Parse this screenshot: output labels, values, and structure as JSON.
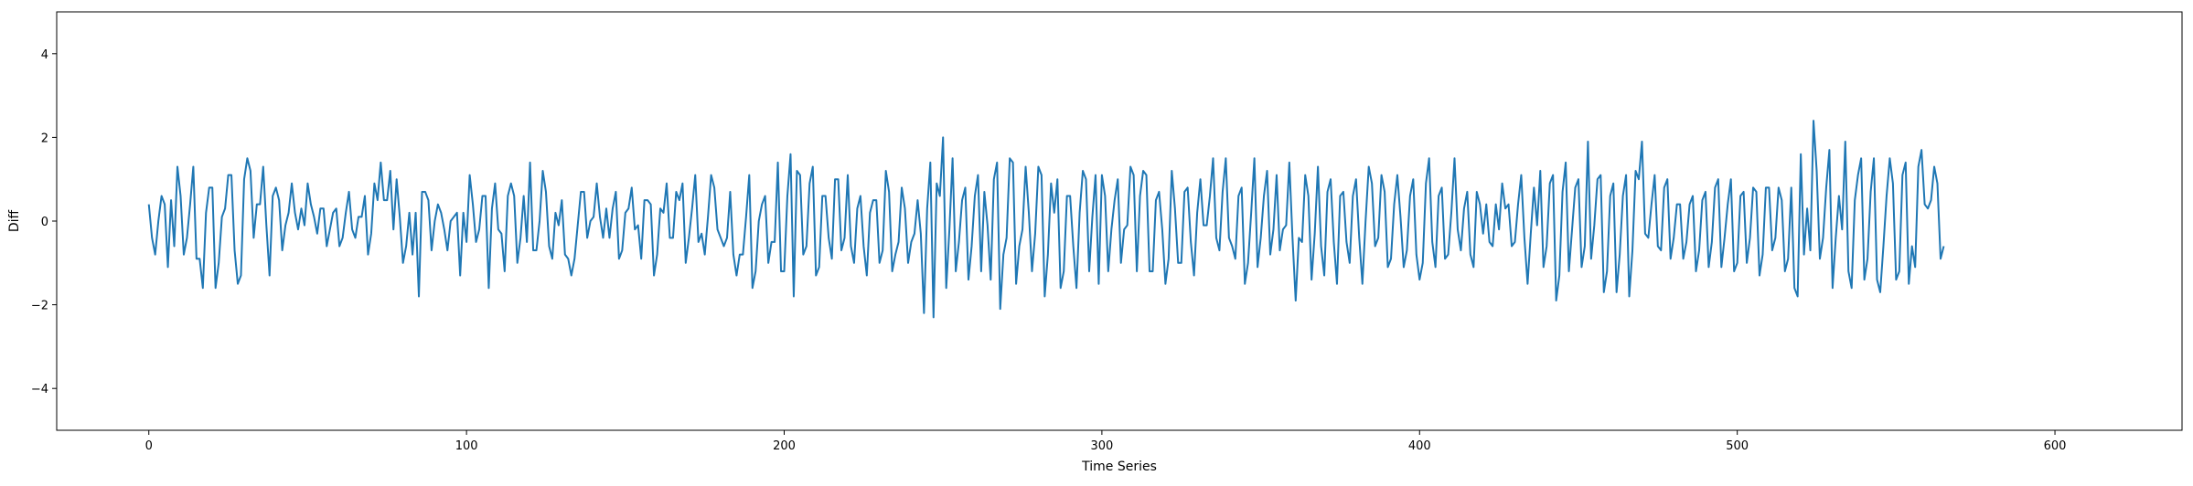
{
  "chart_data": {
    "type": "line",
    "title": "",
    "xlabel": "Time Series",
    "ylabel": "Diff",
    "xlim": [
      -29,
      640
    ],
    "ylim": [
      -5,
      5
    ],
    "xticks": [
      0,
      100,
      200,
      300,
      400,
      500,
      600
    ],
    "yticks": [
      -4,
      -2,
      0,
      2,
      4
    ],
    "xtick_labels": [
      "0",
      "100",
      "200",
      "300",
      "400",
      "500",
      "600"
    ],
    "ytick_labels": [
      "−4",
      "−2",
      "0",
      "2",
      "4"
    ],
    "grid": false,
    "legend": "none",
    "series": [
      {
        "color": "#1f77b4",
        "x_start": 0,
        "x_step": 1,
        "values": [
          0.4,
          -0.4,
          -0.8,
          0.0,
          0.6,
          0.4,
          -1.1,
          0.5,
          -0.6,
          1.3,
          0.6,
          -0.8,
          -0.4,
          0.4,
          1.3,
          -0.9,
          -0.9,
          -1.6,
          0.2,
          0.8,
          0.8,
          -1.6,
          -1.0,
          0.1,
          0.3,
          1.1,
          1.1,
          -0.7,
          -1.5,
          -1.3,
          1.0,
          1.5,
          1.2,
          -0.4,
          0.4,
          0.4,
          1.3,
          -0.1,
          -1.3,
          0.6,
          0.8,
          0.5,
          -0.7,
          -0.1,
          0.2,
          0.9,
          0.2,
          -0.2,
          0.3,
          -0.1,
          0.9,
          0.4,
          0.1,
          -0.3,
          0.3,
          0.3,
          -0.6,
          -0.2,
          0.2,
          0.3,
          -0.6,
          -0.4,
          0.2,
          0.7,
          -0.2,
          -0.4,
          0.1,
          0.1,
          0.6,
          -0.8,
          -0.3,
          0.9,
          0.5,
          1.4,
          0.5,
          0.5,
          1.2,
          -0.2,
          1.0,
          0.1,
          -1.0,
          -0.6,
          0.2,
          -0.8,
          0.2,
          -1.8,
          0.7,
          0.7,
          0.5,
          -0.7,
          0.0,
          0.4,
          0.2,
          -0.2,
          -0.7,
          0.0,
          0.1,
          0.2,
          -1.3,
          0.2,
          -0.5,
          1.1,
          0.4,
          -0.5,
          -0.2,
          0.6,
          0.6,
          -1.6,
          0.3,
          0.9,
          -0.2,
          -0.3,
          -1.2,
          0.6,
          0.9,
          0.6,
          -1.0,
          -0.4,
          0.6,
          -0.5,
          1.4,
          -0.7,
          -0.7,
          0.0,
          1.2,
          0.7,
          -0.6,
          -0.9,
          0.2,
          -0.1,
          0.5,
          -0.8,
          -0.9,
          -1.3,
          -0.9,
          -0.1,
          0.7,
          0.7,
          -0.4,
          0.0,
          0.1,
          0.9,
          0.1,
          -0.4,
          0.3,
          -0.4,
          0.3,
          0.7,
          -0.9,
          -0.7,
          0.2,
          0.3,
          0.8,
          -0.2,
          -0.1,
          -0.9,
          0.5,
          0.5,
          0.4,
          -1.3,
          -0.8,
          0.3,
          0.2,
          0.9,
          -0.4,
          -0.4,
          0.7,
          0.5,
          0.9,
          -1.0,
          -0.4,
          0.3,
          1.1,
          -0.5,
          -0.3,
          -0.8,
          0.1,
          1.1,
          0.8,
          -0.2,
          -0.4,
          -0.6,
          -0.4,
          0.7,
          -0.8,
          -1.3,
          -0.8,
          -0.8,
          0.1,
          1.1,
          -1.6,
          -1.2,
          0.0,
          0.4,
          0.6,
          -1.0,
          -0.5,
          -0.5,
          1.4,
          -1.2,
          -1.2,
          0.6,
          1.6,
          -1.8,
          1.2,
          1.1,
          -0.8,
          -0.6,
          0.9,
          1.3,
          -1.3,
          -1.1,
          0.6,
          0.6,
          -0.4,
          -0.9,
          1.0,
          1.0,
          -0.7,
          -0.4,
          1.1,
          -0.6,
          -1.0,
          0.3,
          0.6,
          -0.6,
          -1.3,
          0.2,
          0.5,
          0.5,
          -1.0,
          -0.7,
          1.2,
          0.7,
          -1.2,
          -0.8,
          -0.5,
          0.8,
          0.3,
          -1.0,
          -0.5,
          -0.3,
          0.5,
          -0.3,
          -2.2,
          0.3,
          1.4,
          -2.3,
          0.9,
          0.6,
          2.0,
          -1.6,
          -0.2,
          1.5,
          -1.2,
          -0.5,
          0.5,
          0.8,
          -1.4,
          -0.6,
          0.6,
          1.1,
          -1.2,
          0.7,
          -0.1,
          -1.4,
          1.0,
          1.4,
          -2.1,
          -0.8,
          -0.4,
          1.5,
          1.4,
          -1.5,
          -0.6,
          -0.2,
          1.3,
          0.2,
          -1.2,
          -0.3,
          1.3,
          1.1,
          -1.8,
          -0.8,
          0.9,
          0.2,
          1.0,
          -1.6,
          -1.2,
          0.6,
          0.6,
          -0.6,
          -1.6,
          0.2,
          1.2,
          1.0,
          -1.2,
          0.1,
          1.1,
          -1.5,
          1.1,
          0.6,
          -1.2,
          -0.2,
          0.5,
          1.0,
          -1.0,
          -0.2,
          -0.1,
          1.3,
          1.1,
          -1.2,
          0.6,
          1.2,
          1.1,
          -1.2,
          -1.2,
          0.5,
          0.7,
          -0.2,
          -1.5,
          -0.9,
          1.2,
          0.3,
          -1.0,
          -1.0,
          0.7,
          0.8,
          -0.5,
          -1.3,
          0.2,
          1.0,
          -0.1,
          -0.1,
          0.6,
          1.5,
          -0.4,
          -0.7,
          0.7,
          1.5,
          -0.4,
          -0.6,
          -0.9,
          0.6,
          0.8,
          -1.5,
          -1.0,
          0.2,
          1.5,
          -1.1,
          -0.4,
          0.6,
          1.2,
          -0.8,
          -0.2,
          1.1,
          -0.7,
          -0.2,
          -0.1,
          1.4,
          -0.4,
          -1.9,
          -0.4,
          -0.5,
          1.1,
          0.6,
          -1.4,
          -0.3,
          1.3,
          -0.6,
          -1.3,
          0.7,
          1.0,
          -0.5,
          -1.5,
          0.6,
          0.7,
          -0.5,
          -1.0,
          0.6,
          1.0,
          -0.4,
          -1.5,
          0.0,
          1.3,
          0.9,
          -0.6,
          -0.4,
          1.1,
          0.7,
          -1.1,
          -0.9,
          0.4,
          1.1,
          0.1,
          -1.1,
          -0.7,
          0.6,
          1.0,
          -0.8,
          -1.4,
          -1.0,
          0.9,
          1.5,
          -0.5,
          -1.1,
          0.6,
          0.8,
          -0.9,
          -0.8,
          0.2,
          1.5,
          -0.2,
          -0.7,
          0.3,
          0.7,
          -0.8,
          -1.1,
          0.7,
          0.4,
          -0.3,
          0.4,
          -0.5,
          -0.6,
          0.4,
          -0.2,
          0.9,
          0.3,
          0.4,
          -0.6,
          -0.5,
          0.4,
          1.1,
          -0.4,
          -1.5,
          -0.3,
          0.8,
          -0.1,
          1.2,
          -1.1,
          -0.6,
          0.9,
          1.1,
          -1.9,
          -1.3,
          0.7,
          1.4,
          -1.2,
          -0.2,
          0.8,
          1.0,
          -1.1,
          -0.6,
          1.9,
          -0.9,
          -0.1,
          1.0,
          1.1,
          -1.7,
          -1.2,
          0.6,
          0.9,
          -1.7,
          -0.8,
          0.6,
          1.1,
          -1.8,
          -0.7,
          1.2,
          1.0,
          1.9,
          -0.3,
          -0.4,
          0.4,
          1.1,
          -0.6,
          -0.7,
          0.8,
          1.0,
          -0.9,
          -0.4,
          0.4,
          0.4,
          -0.9,
          -0.5,
          0.4,
          0.6,
          -1.2,
          -0.7,
          0.5,
          0.7,
          -1.1,
          -0.5,
          0.8,
          1.0,
          -1.1,
          -0.4,
          0.4,
          1.0,
          -1.2,
          -1.0,
          0.6,
          0.7,
          -1.0,
          -0.4,
          0.8,
          0.7,
          -1.3,
          -0.8,
          0.8,
          0.8,
          -0.7,
          -0.4,
          0.8,
          0.5,
          -1.2,
          -0.9,
          0.8,
          -1.6,
          -1.8,
          1.6,
          -0.8,
          0.3,
          -0.7,
          2.4,
          1.2,
          -0.9,
          -0.4,
          0.8,
          1.7,
          -1.6,
          -0.4,
          0.6,
          -0.2,
          1.9,
          -1.2,
          -1.6,
          0.5,
          1.1,
          1.5,
          -1.4,
          -0.9,
          0.7,
          1.5,
          -1.4,
          -1.7,
          -0.6,
          0.6,
          1.5,
          0.9,
          -1.4,
          -1.2,
          1.1,
          1.4,
          -1.5,
          -0.6,
          -1.1,
          1.3,
          1.7,
          0.4,
          0.3,
          0.5,
          1.3,
          0.9,
          -0.9,
          -0.6
        ]
      }
    ]
  }
}
